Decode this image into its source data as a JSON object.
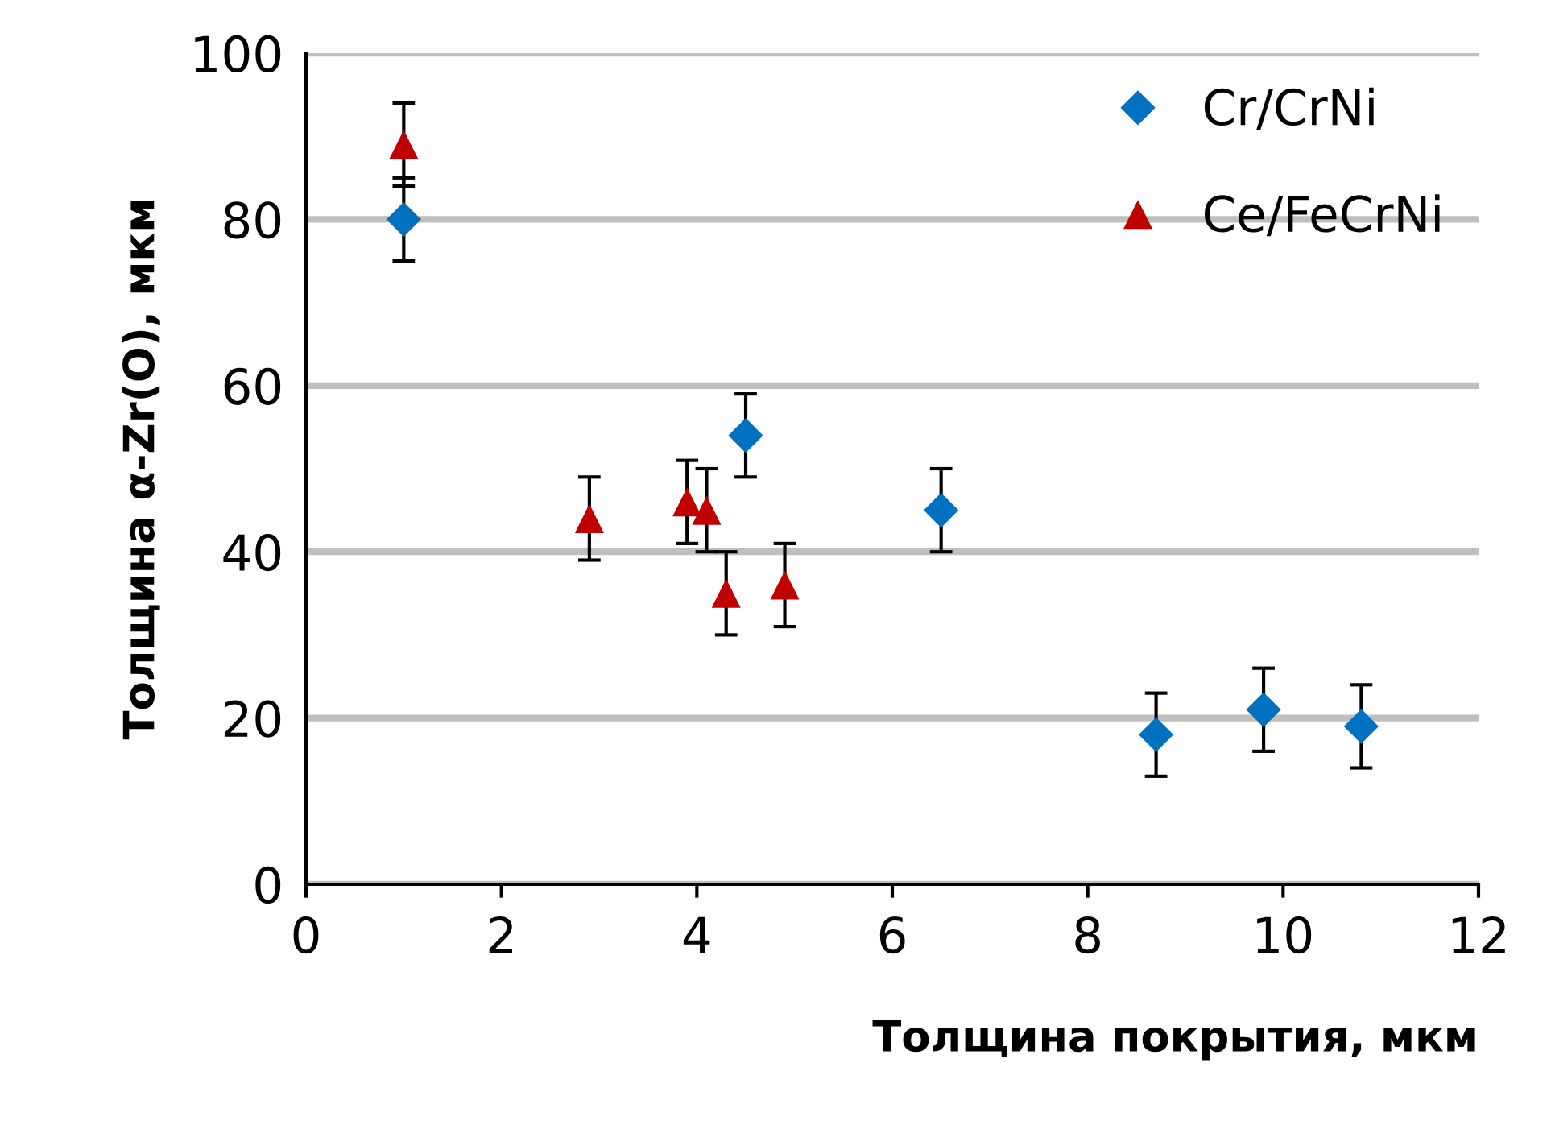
{
  "chart_data": {
    "type": "scatter",
    "xlabel": "Толщина покрытия, мкм",
    "ylabel": "Толщина α-Zr(O), мкм",
    "xlim": [
      0,
      12
    ],
    "xticks": [
      0,
      2,
      4,
      6,
      8,
      10,
      12
    ],
    "ylim": [
      0,
      100
    ],
    "yticks": [
      0,
      20,
      40,
      60,
      80,
      100
    ],
    "grid": "y",
    "legend": "top right",
    "series": [
      {
        "name": "Cr/CrNi",
        "color": "#0070c0",
        "marker": "diamond",
        "x": [
          1,
          4.5,
          6.5,
          8.7,
          9.8,
          10.8
        ],
        "values": [
          80,
          54,
          45,
          18,
          21,
          19
        ],
        "errors": [
          5,
          5,
          5,
          5,
          5,
          5
        ]
      },
      {
        "name": "Ce/FeCrNi",
        "color": "#c00000",
        "marker": "triangle",
        "x": [
          1,
          2.9,
          3.9,
          4.1,
          4.3,
          4.9
        ],
        "values": [
          89,
          44,
          46,
          45,
          35,
          36
        ],
        "errors": [
          5,
          5,
          5,
          5,
          5,
          5
        ]
      }
    ]
  }
}
